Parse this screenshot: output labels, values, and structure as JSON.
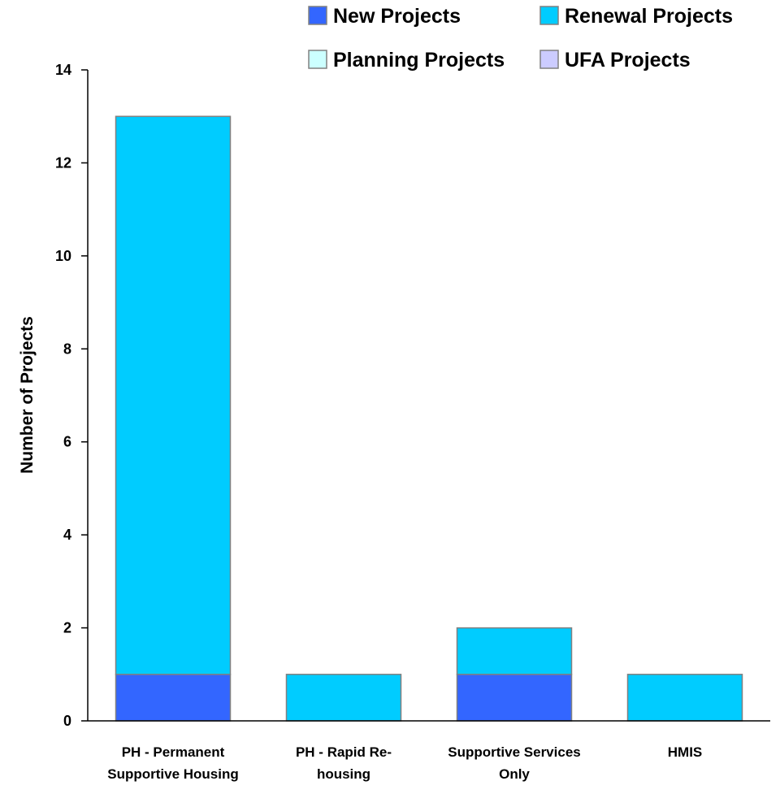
{
  "chart_data": {
    "type": "bar",
    "stacked": true,
    "title": "",
    "xlabel": "",
    "ylabel": "Number of Projects",
    "ylim": [
      0,
      14
    ],
    "yticks": [
      0,
      2,
      4,
      6,
      8,
      10,
      12,
      14
    ],
    "grid": false,
    "legend_position": "top",
    "categories": [
      [
        "PH - Permanent",
        "Supportive Housing"
      ],
      [
        "PH - Rapid Re-",
        "housing"
      ],
      [
        "Supportive Services",
        "Only"
      ],
      [
        "HMIS"
      ]
    ],
    "series": [
      {
        "name": "New Projects",
        "color": "#3366ff",
        "values": [
          1,
          0,
          1,
          0
        ]
      },
      {
        "name": "Renewal Projects",
        "color": "#00ccff",
        "values": [
          12,
          1,
          1,
          1
        ]
      },
      {
        "name": "Planning Projects",
        "color": "#ccffff",
        "values": [
          0,
          0,
          0,
          0
        ]
      },
      {
        "name": "UFA Projects",
        "color": "#ccccff",
        "values": [
          0,
          0,
          0,
          0
        ]
      }
    ]
  }
}
